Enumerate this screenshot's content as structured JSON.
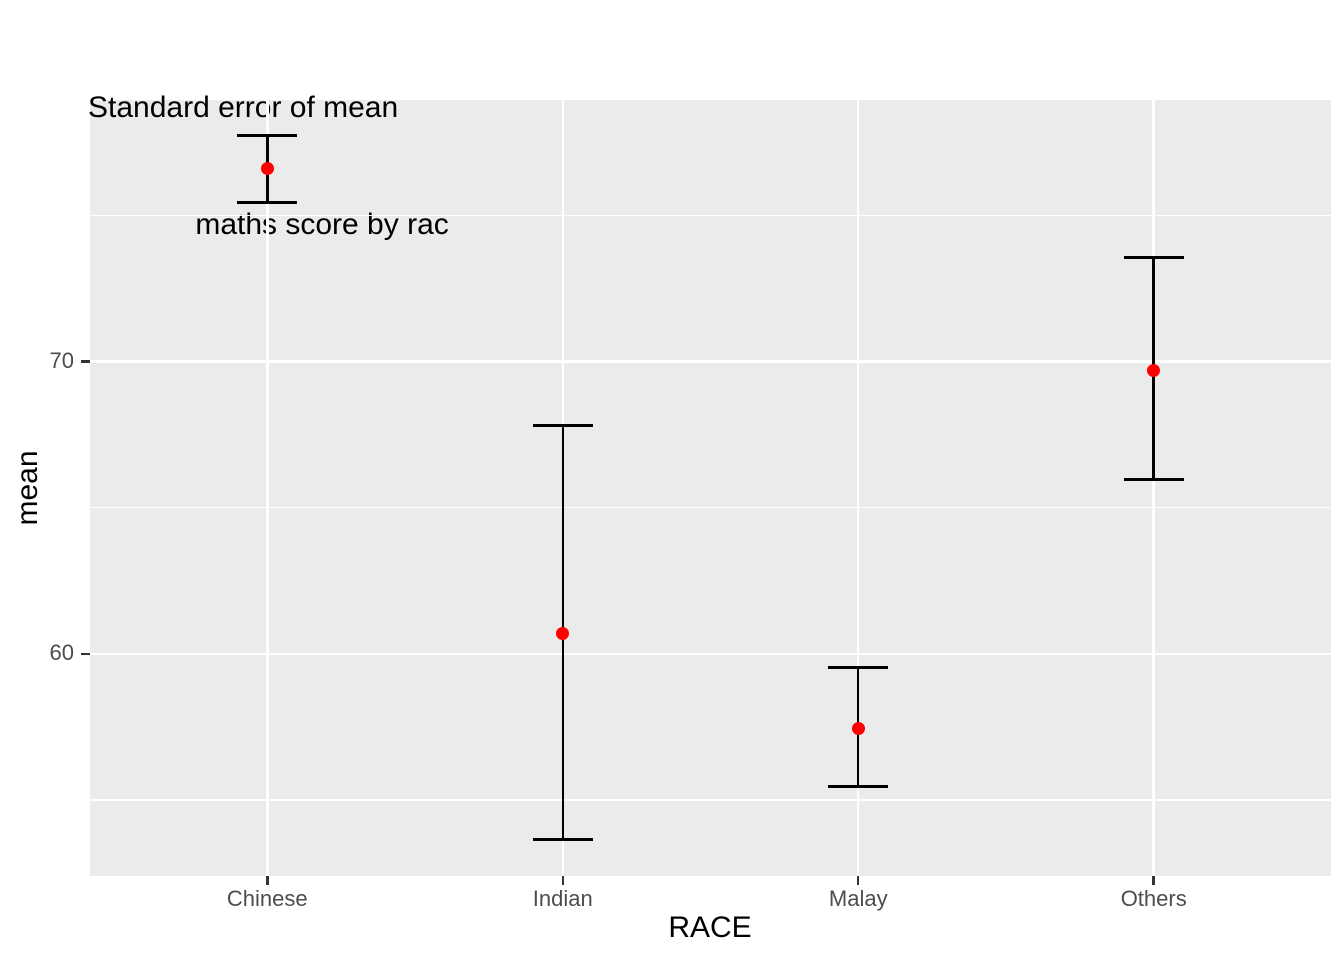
{
  "title": {
    "lines": [
      "Standard error of mean",
      " maths score by rac"
    ]
  },
  "axes": {
    "x": {
      "label": "RACE"
    },
    "y": {
      "label": "mean"
    }
  },
  "chart_data": {
    "type": "errorbar",
    "title": "Standard error of mean maths score by rac",
    "xlabel": "RACE",
    "ylabel": "mean",
    "categories": [
      "Chinese",
      "Indian",
      "Malay",
      "Others"
    ],
    "points": [
      {
        "category": "Chinese",
        "mean": 76.6,
        "ymin": 75.45,
        "ymax": 77.75
      },
      {
        "category": "Indian",
        "mean": 60.7,
        "ymin": 53.65,
        "ymax": 67.8
      },
      {
        "category": "Malay",
        "mean": 57.45,
        "ymin": 55.45,
        "ymax": 59.55
      },
      {
        "category": "Others",
        "mean": 69.7,
        "ymin": 65.95,
        "ymax": 73.55
      }
    ],
    "ylim": [
      52.4,
      78.95
    ],
    "y_major_ticks": [
      {
        "value": 60,
        "label": "60"
      },
      {
        "value": 70,
        "label": "70"
      }
    ],
    "y_minor_gridlines": [
      55,
      65,
      75
    ],
    "grid": true,
    "legend": false,
    "colors": {
      "point": "#FF0000",
      "errorbar": "#000000",
      "panel_background": "#EBEBEB",
      "gridline": "#FFFFFF",
      "tick_text": "#4D4D4D",
      "title_text": "#000000"
    }
  }
}
